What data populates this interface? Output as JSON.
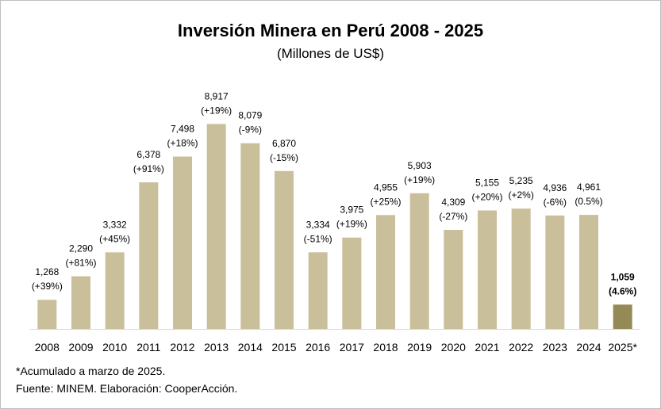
{
  "chart_data": {
    "type": "bar",
    "title": "Inversión Minera en Perú 2008 - 2025",
    "subtitle": "(Millones de US$)",
    "xlabel": "",
    "ylabel": "",
    "categories": [
      "2008",
      "2009",
      "2010",
      "2011",
      "2012",
      "2013",
      "2014",
      "2015",
      "2016",
      "2017",
      "2018",
      "2019",
      "2020",
      "2021",
      "2022",
      "2023",
      "2024",
      "2025*"
    ],
    "values": [
      1268,
      2290,
      3332,
      6378,
      7498,
      8917,
      8079,
      6870,
      3334,
      3975,
      4955,
      5903,
      4309,
      5155,
      5235,
      4936,
      4961,
      1059
    ],
    "value_labels": [
      "1,268",
      "2,290",
      "3,332",
      "6,378",
      "7,498",
      "8,917",
      "8,079",
      "6,870",
      "3,334",
      "3,975",
      "4,955",
      "5,903",
      "4,309",
      "5,155",
      "5,235",
      "4,936",
      "4,961",
      "1,059"
    ],
    "change_labels": [
      "(+39%)",
      "(+81%)",
      "(+45%)",
      "(+91%)",
      "(+18%)",
      "(+19%)",
      "(-9%)",
      "(-15%)",
      "(-51%)",
      "(+19%)",
      "(+25%)",
      "(+19%)",
      "(-27%)",
      "(+20%)",
      "(+2%)",
      "(-6%)",
      "(0.5%)",
      "(4.6%)"
    ],
    "highlight_index": 17,
    "ylim": [
      0,
      10000
    ],
    "grid": false,
    "legend": "none",
    "colors": {
      "bar": "#c9bf9a",
      "highlight": "#958a55",
      "axis": "#d9d9d9"
    }
  },
  "notes": {
    "footnote": "*Acumulado a marzo de 2025.",
    "source": "Fuente: MINEM. Elaboración: CooperAcción."
  }
}
